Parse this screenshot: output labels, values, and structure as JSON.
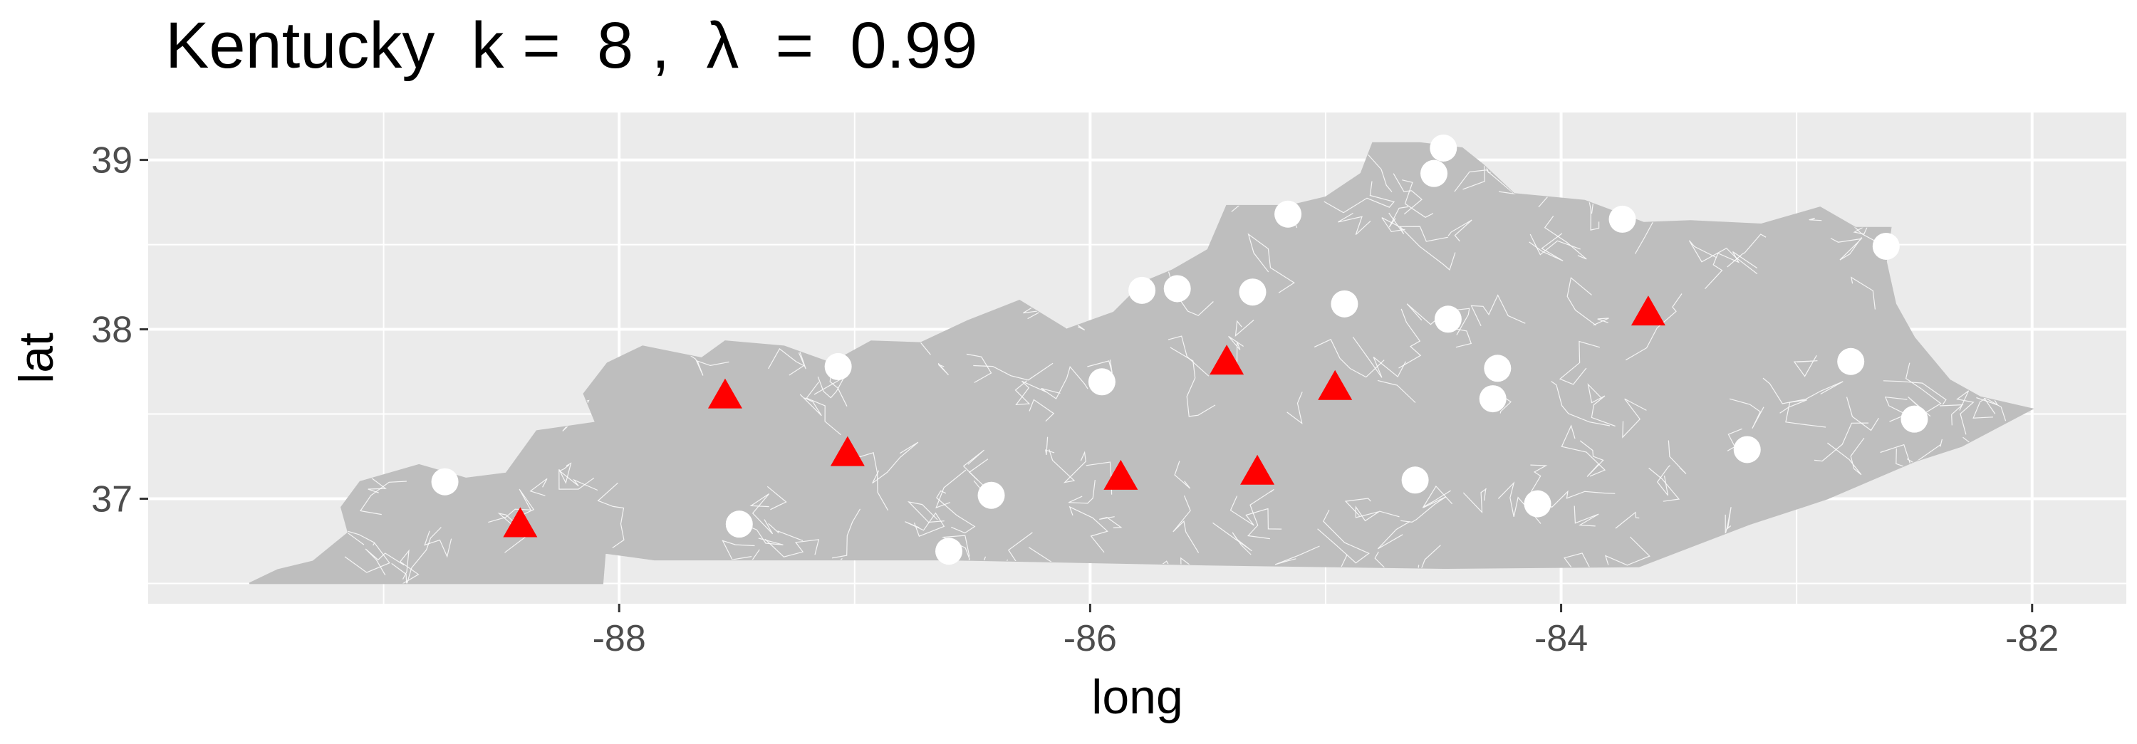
{
  "title": "Kentucky  k =  8 ,  λ  =  0.99",
  "chart_data": {
    "type": "scatter",
    "title": "Kentucky  k =  8 ,  λ  =  0.99",
    "xlabel": "long",
    "ylabel": "lat",
    "xlim": [
      -90.0,
      -81.6
    ],
    "ylim": [
      36.38,
      39.28
    ],
    "x_ticks": [
      -88,
      -86,
      -84,
      -82
    ],
    "x_tick_labels": [
      "-88",
      "-86",
      "-84",
      "-82"
    ],
    "y_ticks": [
      37,
      38,
      39
    ],
    "y_tick_labels": [
      "37",
      "38",
      "39"
    ],
    "grid": true,
    "colors": {
      "panel_background": "#ebebeb",
      "grid_major": "#ffffff",
      "region_fill": "#bebebe",
      "region_border": "#ffffff",
      "selected_marker": "#ff0000",
      "candidate_marker": "#ffffff"
    },
    "series": [
      {
        "marker": "triangle",
        "color": "#ff0000",
        "points": [
          {
            "x": -88.42,
            "y": 36.84
          },
          {
            "x": -87.55,
            "y": 37.6
          },
          {
            "x": -87.03,
            "y": 37.26
          },
          {
            "x": -85.87,
            "y": 37.12
          },
          {
            "x": -85.42,
            "y": 37.8
          },
          {
            "x": -85.29,
            "y": 37.15
          },
          {
            "x": -84.96,
            "y": 37.65
          },
          {
            "x": -83.63,
            "y": 38.09
          }
        ]
      },
      {
        "marker": "circle",
        "color": "#ffffff",
        "points": [
          {
            "x": -88.74,
            "y": 37.1
          },
          {
            "x": -87.49,
            "y": 36.85
          },
          {
            "x": -87.07,
            "y": 37.78
          },
          {
            "x": -86.6,
            "y": 36.69
          },
          {
            "x": -86.42,
            "y": 37.02
          },
          {
            "x": -85.95,
            "y": 37.69
          },
          {
            "x": -85.78,
            "y": 38.23
          },
          {
            "x": -85.63,
            "y": 38.24
          },
          {
            "x": -85.31,
            "y": 38.22
          },
          {
            "x": -85.16,
            "y": 38.68
          },
          {
            "x": -84.92,
            "y": 38.15
          },
          {
            "x": -84.62,
            "y": 37.11
          },
          {
            "x": -84.54,
            "y": 38.92
          },
          {
            "x": -84.5,
            "y": 39.07
          },
          {
            "x": -84.48,
            "y": 38.06
          },
          {
            "x": -84.27,
            "y": 37.77
          },
          {
            "x": -84.29,
            "y": 37.59
          },
          {
            "x": -84.1,
            "y": 36.97
          },
          {
            "x": -83.74,
            "y": 38.65
          },
          {
            "x": -83.21,
            "y": 37.29
          },
          {
            "x": -82.77,
            "y": 37.81
          },
          {
            "x": -82.62,
            "y": 38.49
          },
          {
            "x": -82.5,
            "y": 37.47
          }
        ]
      }
    ]
  }
}
